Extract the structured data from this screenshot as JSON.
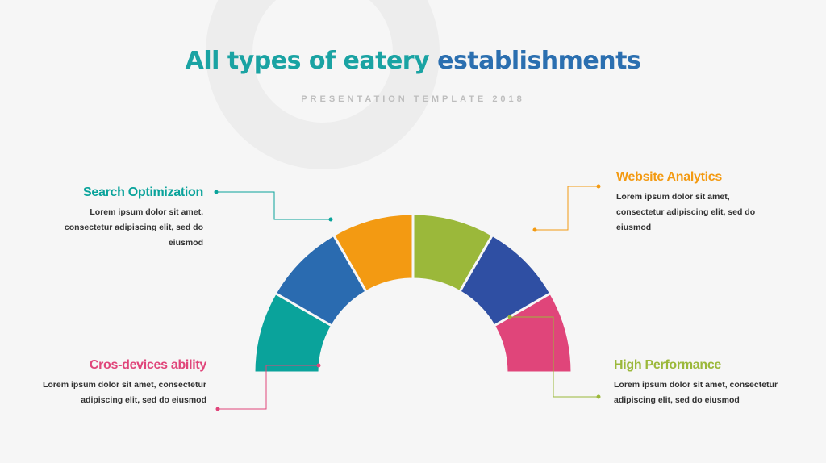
{
  "header": {
    "title_part1": "All types of eatery",
    "title_part2": "establishments",
    "subtitle": "PRESENTATION TEMPLATE 2018"
  },
  "colors": {
    "teal": "#0aa39b",
    "blue": "#2a6bb0",
    "orange": "#f39a12",
    "green": "#9bb83a",
    "navy": "#2f4fa3",
    "pink": "#e0457a"
  },
  "blocks": {
    "search": {
      "title": "Search Optimization",
      "text_lines": [
        "Lorem ipsum dolor sit amet,",
        "consectetur adipiscing elit, sed do",
        "eiusmod"
      ],
      "color": "#0aa39b"
    },
    "cros": {
      "title": "Cros-devices ability",
      "text_lines": [
        "Lorem ipsum dolor sit amet, consectetur",
        "adipiscing elit, sed do eiusmod"
      ],
      "color": "#e0457a"
    },
    "website": {
      "title": "Website Analytics",
      "text_lines": [
        "Lorem ipsum dolor sit amet,",
        "consectetur adipiscing elit, sed do",
        "eiusmod"
      ],
      "color": "#f39a12"
    },
    "high": {
      "title": "High Performance",
      "text_lines": [
        "Lorem ipsum dolor sit amet, consectetur",
        "adipiscing elit, sed do eiusmod"
      ],
      "color": "#9bb83a"
    }
  },
  "segments": [
    {
      "name": "teal-segment",
      "color": "#0aa39b"
    },
    {
      "name": "blue-segment",
      "color": "#2a6bb0"
    },
    {
      "name": "orange-segment",
      "color": "#f39a12"
    },
    {
      "name": "green-segment",
      "color": "#9bb83a"
    },
    {
      "name": "navy-segment",
      "color": "#2f4fa3"
    },
    {
      "name": "pink-segment",
      "color": "#e0457a"
    }
  ]
}
